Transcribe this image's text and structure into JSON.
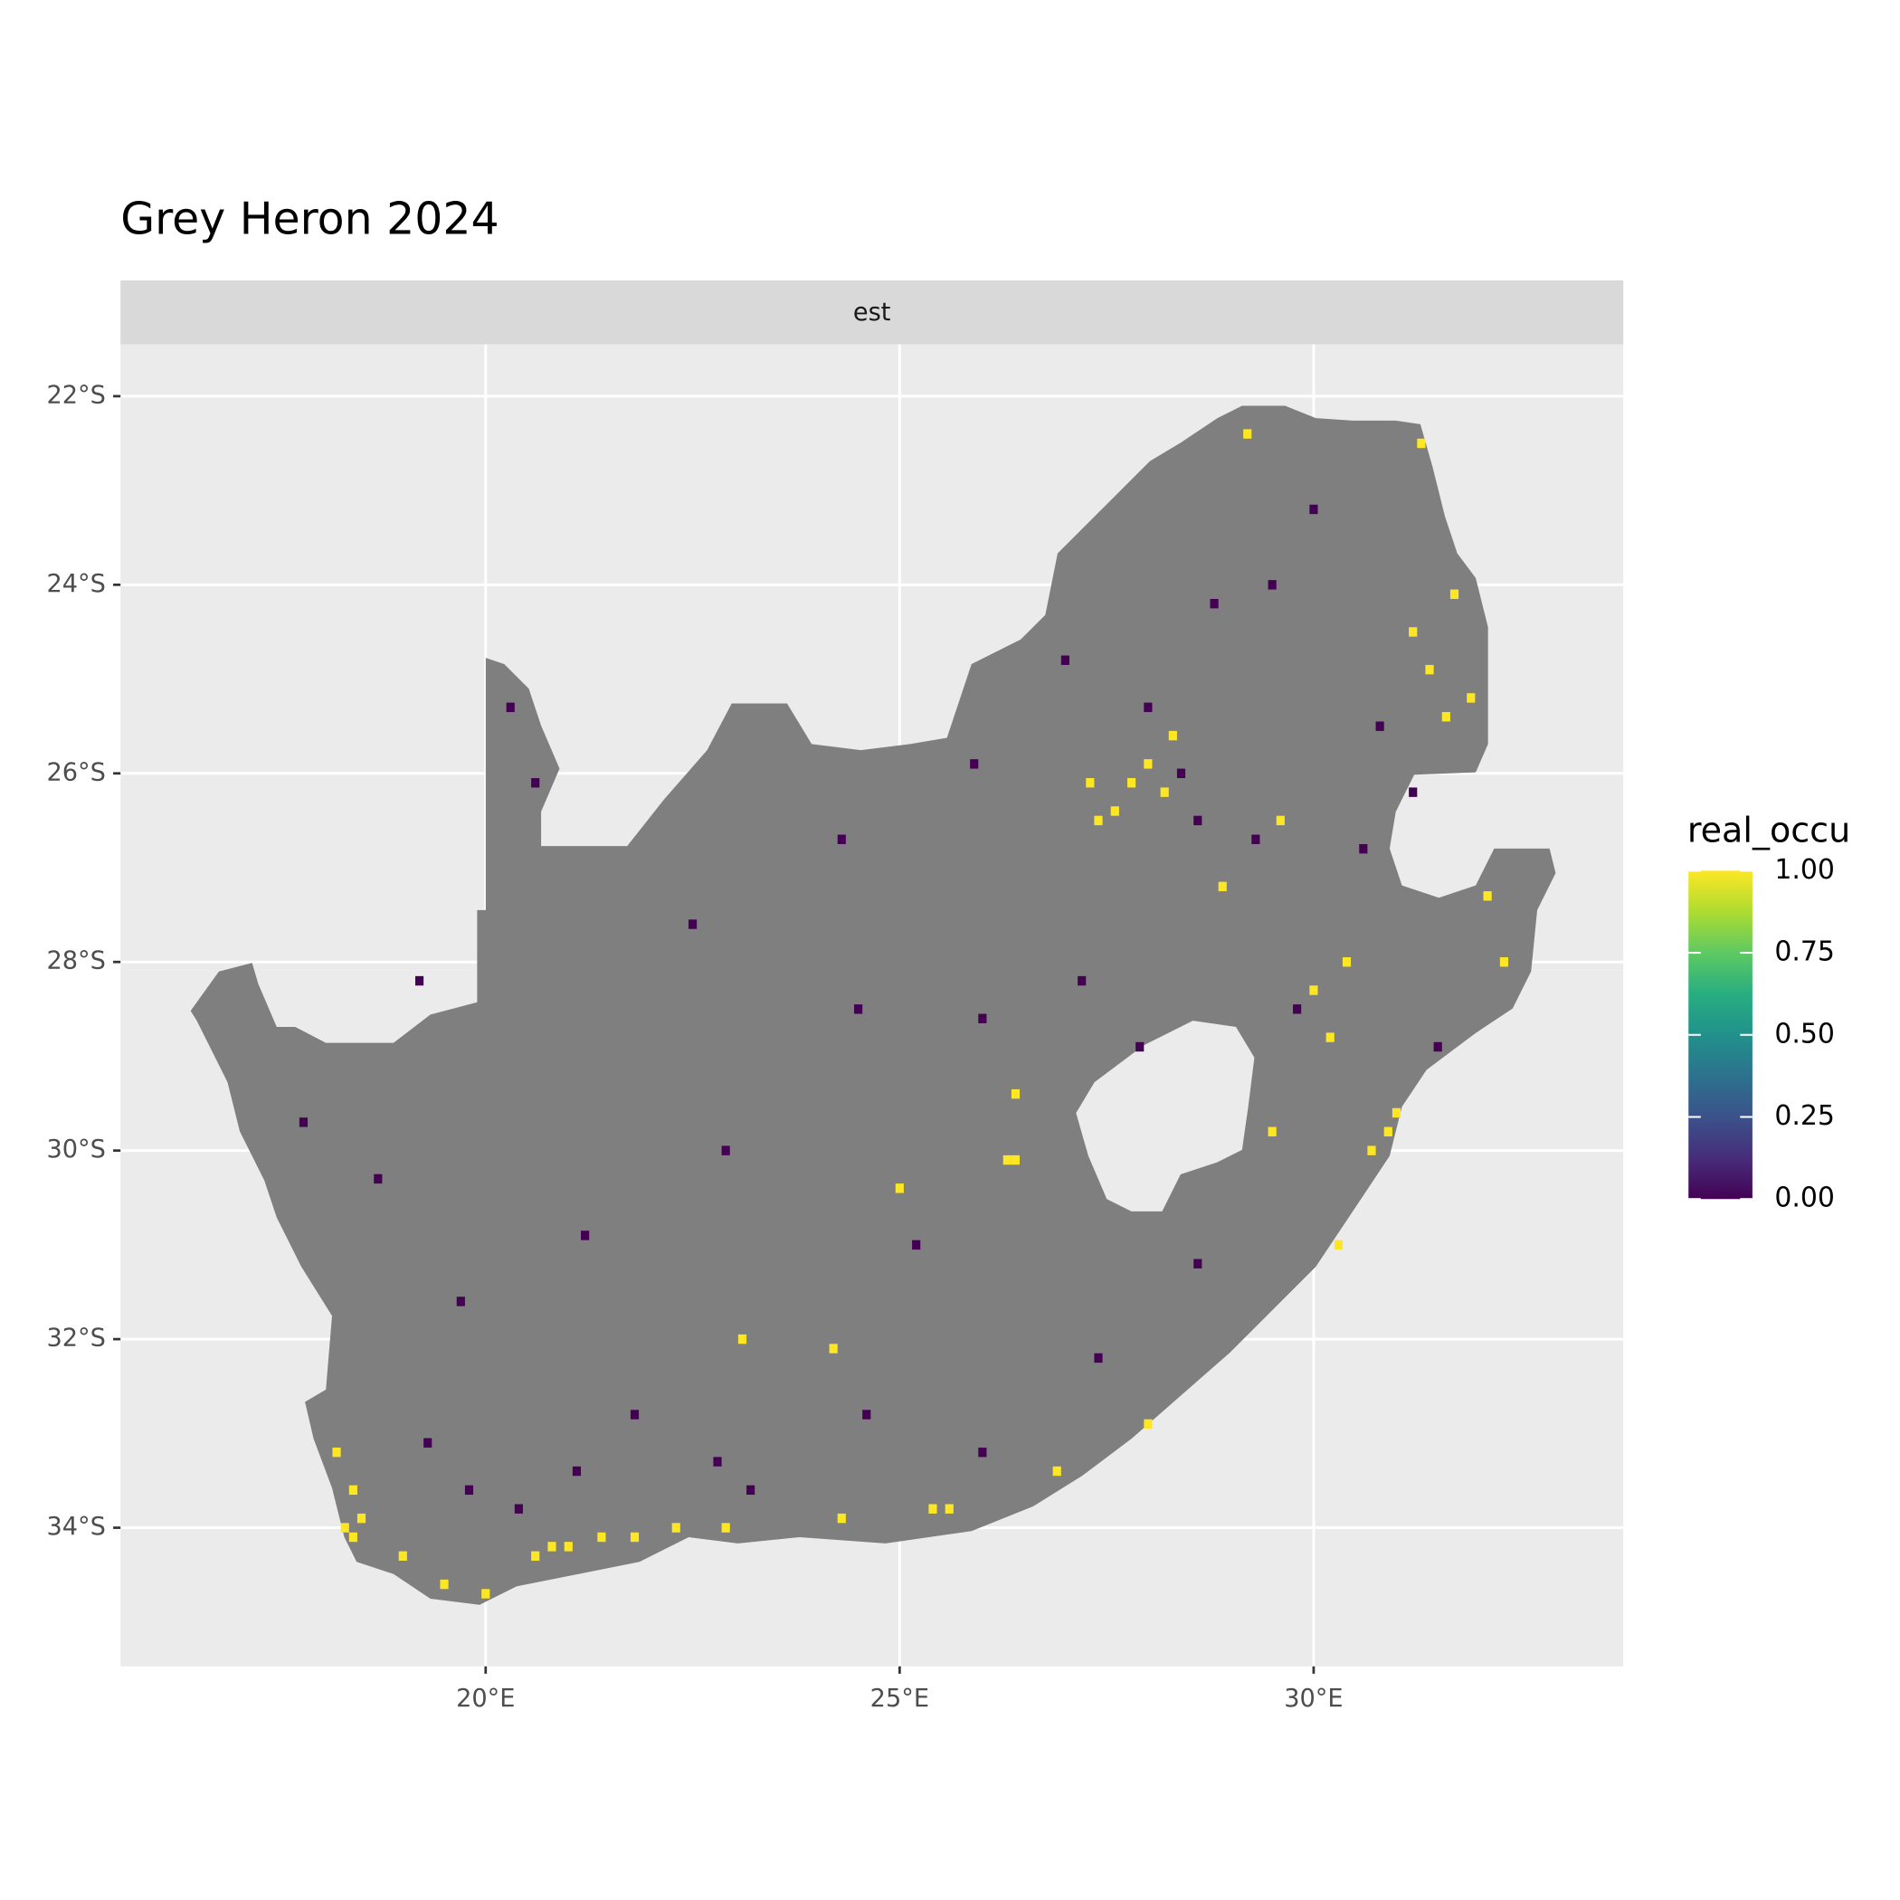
{
  "chart_data": {
    "type": "raster",
    "title": "Grey Heron 2024",
    "facet": "est",
    "legend_title": "real_occu",
    "xlim": [
      15.59,
      33.74
    ],
    "ylim": [
      -35.47,
      -21.45
    ],
    "xticks": [
      {
        "value": 20,
        "label": "20°E"
      },
      {
        "value": 25,
        "label": "25°E"
      },
      {
        "value": 30,
        "label": "30°E"
      }
    ],
    "yticks": [
      {
        "value": -22,
        "label": "22°S"
      },
      {
        "value": -24,
        "label": "24°S"
      },
      {
        "value": -26,
        "label": "26°S"
      },
      {
        "value": -28,
        "label": "28°S"
      },
      {
        "value": -30,
        "label": "30°S"
      },
      {
        "value": -32,
        "label": "32°S"
      },
      {
        "value": -34,
        "label": "34°S"
      }
    ],
    "colorbar_lim": [
      0,
      1
    ],
    "colorbar_ticks": [
      {
        "value": 0,
        "label": "0.00"
      },
      {
        "value": 0.25,
        "label": "0.25"
      },
      {
        "value": 0.5,
        "label": "0.50"
      },
      {
        "value": 0.75,
        "label": "0.75"
      },
      {
        "value": 1,
        "label": "1.00"
      }
    ],
    "grid": true,
    "x": [
      18.3,
      18.4,
      18.5,
      18.4,
      18.2,
      19.0,
      19.5,
      20.0,
      20.6,
      20.8,
      21.0,
      21.4,
      21.8,
      22.3,
      22.9,
      24.3,
      25.4,
      25.6,
      26.9,
      28.0,
      30.3,
      30.7,
      30.9,
      31.0,
      29.5,
      30.2,
      30.4,
      30.0,
      27.4,
      27.6,
      27.8,
      28.0,
      28.2,
      28.3,
      27.3,
      28.9,
      29.6,
      31.2,
      31.4,
      31.6,
      31.9,
      31.7,
      31.3,
      29.2,
      32.3,
      32.1,
      26.4,
      26.3,
      26.4,
      25.0,
      23.1,
      24.2,
      28.4,
      28.6,
      28.0,
      27.0,
      28.8,
      29.5,
      30.0,
      30.8,
      30.6,
      29.8,
      31.5,
      31.2,
      27.2,
      26.0,
      24.5,
      22.9,
      21.2,
      19.7,
      18.7,
      17.8,
      19.2,
      20.6,
      20.3,
      22.5,
      24.3,
      25.9,
      19.3,
      19.8,
      20.4,
      21.1,
      22.8,
      23.2,
      24.6,
      26.0,
      27.4,
      28.6,
      21.8,
      25.2,
      27.9,
      29.3
    ],
    "y": [
      -34.0,
      -34.1,
      -33.9,
      -33.6,
      -33.2,
      -34.3,
      -34.6,
      -34.7,
      -34.3,
      -34.2,
      -34.2,
      -34.1,
      -34.1,
      -34.0,
      -34.0,
      -33.9,
      -33.8,
      -33.8,
      -33.4,
      -32.9,
      -31.0,
      -30.0,
      -29.8,
      -29.6,
      -29.8,
      -28.8,
      -28.0,
      -28.3,
      -26.5,
      -26.4,
      -26.1,
      -25.9,
      -26.2,
      -25.6,
      -26.1,
      -27.2,
      -26.5,
      -24.5,
      -24.9,
      -25.4,
      -25.2,
      -24.1,
      -22.5,
      -22.4,
      -28.0,
      -27.3,
      -29.4,
      -30.1,
      -30.1,
      -30.4,
      -32.0,
      -32.1,
      -26.0,
      -26.5,
      -25.3,
      -24.8,
      -24.2,
      -24.0,
      -23.2,
      -25.5,
      -26.8,
      -28.5,
      -28.9,
      -26.2,
      -28.2,
      -28.6,
      -28.5,
      -30.0,
      -30.9,
      -31.6,
      -30.3,
      -29.7,
      -28.2,
      -26.1,
      -25.3,
      -27.6,
      -26.7,
      -25.9,
      -33.1,
      -33.6,
      -33.8,
      -33.4,
      -33.3,
      -33.6,
      -32.8,
      -33.2,
      -32.2,
      -31.2,
      -32.8,
      -31.0,
      -28.9,
      -26.7
    ],
    "values": [
      1,
      1,
      1,
      1,
      1,
      1,
      1,
      1,
      1,
      1,
      1,
      1,
      1,
      1,
      1,
      1,
      1,
      1,
      1,
      1,
      1,
      1,
      1,
      1,
      1,
      1,
      1,
      1,
      1,
      1,
      1,
      1,
      1,
      1,
      1,
      1,
      1,
      1,
      1,
      1,
      1,
      1,
      1,
      1,
      1,
      1,
      1,
      1,
      1,
      1,
      1,
      1,
      0,
      0,
      0,
      0,
      0,
      0,
      0,
      0,
      0,
      0,
      0,
      0,
      0,
      0,
      0,
      0,
      0,
      0,
      0,
      0,
      0,
      0,
      0,
      0,
      0,
      0,
      0,
      0,
      0,
      0,
      0,
      0,
      0,
      0,
      0,
      0,
      0,
      0,
      0,
      0
    ]
  }
}
